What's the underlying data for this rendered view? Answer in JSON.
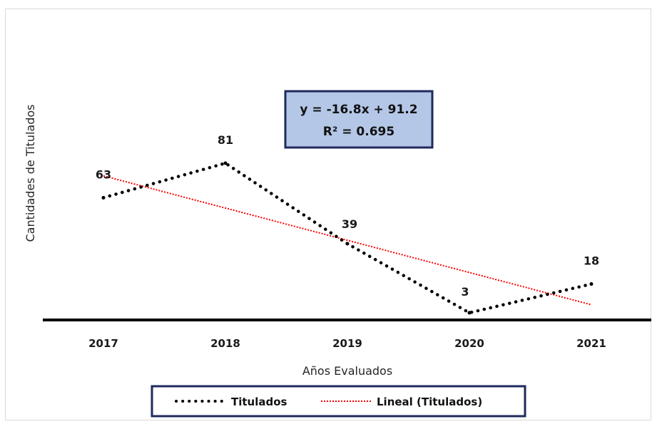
{
  "chart_data": {
    "type": "line",
    "categories": [
      "2017",
      "2018",
      "2019",
      "2020",
      "2021"
    ],
    "x_index": [
      1,
      2,
      3,
      4,
      5
    ],
    "series": [
      {
        "name": "Titulados",
        "values": [
          63,
          81,
          39,
          3,
          18
        ],
        "color": "#000000",
        "style": "dotted"
      }
    ],
    "trendline": {
      "name": "Lineal (Titulados)",
      "type": "linear",
      "slope": -16.8,
      "intercept": 91.2,
      "color": "#ff0000",
      "style": "dotted",
      "equation_text": "y = -16.8x + 91.2",
      "r2_text": "R² = 0.695"
    },
    "xlabel": "Años Evaluados",
    "ylabel": "Cantidades de Titulados",
    "ylim": [
      0,
      81
    ],
    "grid": false,
    "legend_position": "bottom",
    "equation_box_color": "#b4c7e7",
    "equation_box_border": "#1f2a5c",
    "legend_border": "#1f2a5c"
  }
}
